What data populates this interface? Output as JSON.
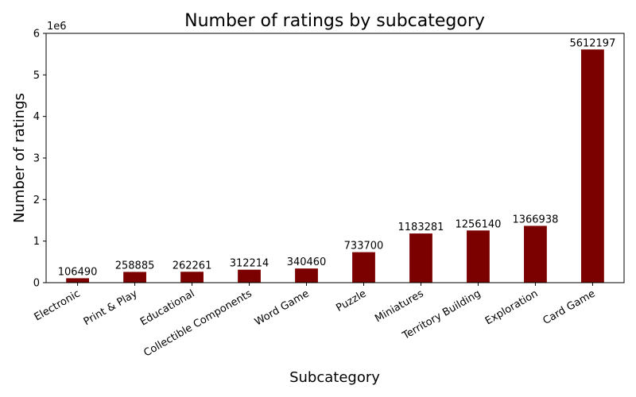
{
  "chart_data": {
    "type": "bar",
    "title": "Number of ratings by subcategory",
    "xlabel": "Subcategory",
    "ylabel": "Number of ratings",
    "y_offset_label": "1e6",
    "y_scale": 1000000,
    "ylim": [
      0,
      6000000
    ],
    "yticks": [
      0,
      1,
      2,
      3,
      4,
      5,
      6
    ],
    "grid": false,
    "bar_color": "#7b0000",
    "categories": [
      "Electronic",
      "Print & Play",
      "Educational",
      "Collectible Components",
      "Word Game",
      "Puzzle",
      "Miniatures",
      "Territory Building",
      "Exploration",
      "Card Game"
    ],
    "values": [
      106490,
      258885,
      262261,
      312214,
      340460,
      733700,
      1183281,
      1256140,
      1366938,
      5612197
    ]
  }
}
